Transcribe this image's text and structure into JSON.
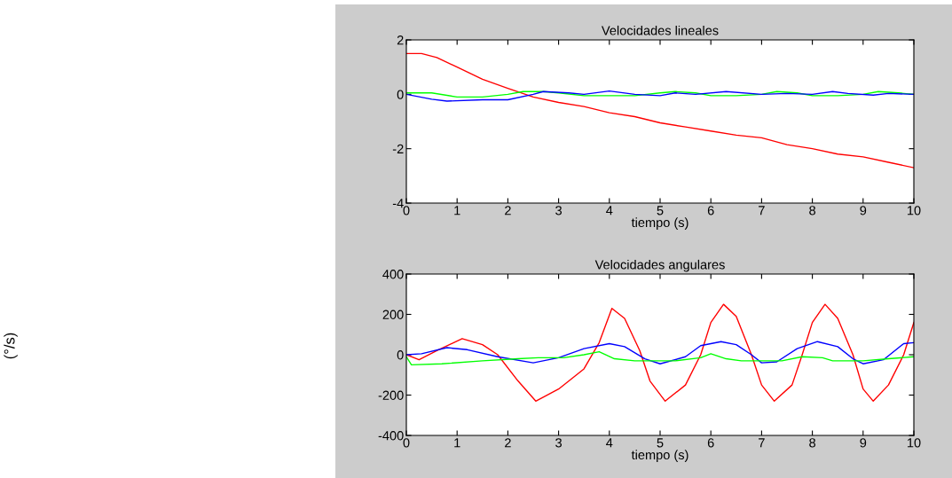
{
  "chart_data": [
    {
      "type": "line",
      "title": "Velocidades lineales",
      "xlabel": "tiempo (s)",
      "xlim": [
        0,
        10
      ],
      "xticks": [
        0,
        1,
        2,
        3,
        4,
        5,
        6,
        7,
        8,
        9,
        10
      ],
      "ylim": [
        -4,
        2
      ],
      "yticks": [
        -4,
        -2,
        0,
        2
      ],
      "grid": false,
      "legend": false,
      "series": [
        {
          "color": "#ff0000",
          "x": [
            0,
            0.3,
            0.6,
            1,
            1.5,
            2,
            2.5,
            3,
            3.5,
            4,
            4.5,
            5,
            5.5,
            6,
            6.5,
            7,
            7.5,
            8,
            8.5,
            9,
            9.5,
            10
          ],
          "values": [
            1.5,
            1.5,
            1.35,
            1.0,
            0.55,
            0.22,
            -0.1,
            -0.3,
            -0.45,
            -0.68,
            -0.82,
            -1.05,
            -1.2,
            -1.35,
            -1.5,
            -1.6,
            -1.85,
            -2.0,
            -2.2,
            -2.3,
            -2.5,
            -2.7
          ]
        },
        {
          "color": "#00ff00",
          "x": [
            0,
            0.5,
            1,
            1.5,
            2,
            2.3,
            2.7,
            3,
            3.5,
            4,
            4.5,
            5,
            5.3,
            5.7,
            6,
            6.5,
            7,
            7.3,
            7.7,
            8,
            8.5,
            9,
            9.3,
            9.7,
            10
          ],
          "values": [
            0.05,
            0.05,
            -0.1,
            -0.1,
            0.0,
            0.1,
            0.1,
            0.05,
            -0.05,
            -0.05,
            -0.05,
            0.05,
            0.1,
            0.05,
            -0.05,
            -0.05,
            0.0,
            0.1,
            0.05,
            -0.05,
            -0.05,
            0.0,
            0.1,
            0.05,
            0.0
          ]
        },
        {
          "color": "#0000ff",
          "x": [
            0,
            0.5,
            0.8,
            1.5,
            2,
            2.5,
            2.7,
            3.2,
            3.5,
            4,
            4.5,
            5,
            5.3,
            5.7,
            6.3,
            7,
            7.5,
            8,
            8.4,
            8.7,
            9.2,
            9.5,
            10
          ],
          "values": [
            0.0,
            -0.18,
            -0.25,
            -0.2,
            -0.2,
            0.0,
            0.1,
            0.05,
            0.0,
            0.12,
            0.0,
            -0.05,
            0.05,
            0.0,
            0.1,
            0.0,
            0.03,
            0.0,
            0.1,
            0.03,
            -0.03,
            0.03,
            0.0
          ]
        }
      ]
    },
    {
      "type": "line",
      "title": "Velocidades angulares",
      "xlabel": "tiempo (s)",
      "ylabel": "(°/s)",
      "xlim": [
        0,
        10
      ],
      "xticks": [
        0,
        1,
        2,
        3,
        4,
        5,
        6,
        7,
        8,
        9,
        10
      ],
      "ylim": [
        -400,
        400
      ],
      "yticks": [
        -400,
        -200,
        0,
        200,
        400
      ],
      "grid": false,
      "legend": false,
      "series": [
        {
          "color": "#ff0000",
          "x": [
            0,
            0.25,
            0.6,
            1.1,
            1.5,
            1.8,
            2.2,
            2.55,
            3,
            3.5,
            3.8,
            4.05,
            4.3,
            4.6,
            4.8,
            5.1,
            5.5,
            5.8,
            6.0,
            6.25,
            6.5,
            6.8,
            7.0,
            7.25,
            7.6,
            7.8,
            8.0,
            8.25,
            8.5,
            8.8,
            9.0,
            9.2,
            9.5,
            9.8,
            10
          ],
          "values": [
            0,
            -25,
            20,
            80,
            50,
            0,
            -130,
            -230,
            -170,
            -70,
            60,
            230,
            180,
            20,
            -130,
            -230,
            -150,
            0,
            160,
            250,
            190,
            0,
            -150,
            -230,
            -150,
            0,
            160,
            250,
            180,
            0,
            -170,
            -230,
            -150,
            0,
            160
          ]
        },
        {
          "color": "#0000ff",
          "x": [
            0,
            0.3,
            0.8,
            1.2,
            1.8,
            2.5,
            3,
            3.5,
            4,
            4.3,
            4.7,
            5,
            5.5,
            5.8,
            6.2,
            6.5,
            6.8,
            7,
            7.3,
            7.7,
            8.1,
            8.5,
            8.8,
            9,
            9.4,
            9.8,
            10
          ],
          "values": [
            0,
            5,
            35,
            25,
            -10,
            -40,
            -15,
            30,
            55,
            40,
            -20,
            -45,
            -10,
            45,
            65,
            50,
            0,
            -40,
            -35,
            30,
            65,
            40,
            -20,
            -45,
            -25,
            55,
            60
          ]
        },
        {
          "color": "#00ff00",
          "x": [
            0,
            0.1,
            0.7,
            1.5,
            2.2,
            2.6,
            3.1,
            3.5,
            3.8,
            4.1,
            4.5,
            5.3,
            5.8,
            6.0,
            6.3,
            6.6,
            7.4,
            7.8,
            8.2,
            8.4,
            9,
            9.5,
            10
          ],
          "values": [
            -10,
            -50,
            -45,
            -30,
            -20,
            -15,
            -15,
            0,
            15,
            -20,
            -30,
            -30,
            -15,
            5,
            -20,
            -30,
            -30,
            -10,
            -15,
            -30,
            -30,
            -20,
            -10
          ]
        }
      ]
    }
  ]
}
